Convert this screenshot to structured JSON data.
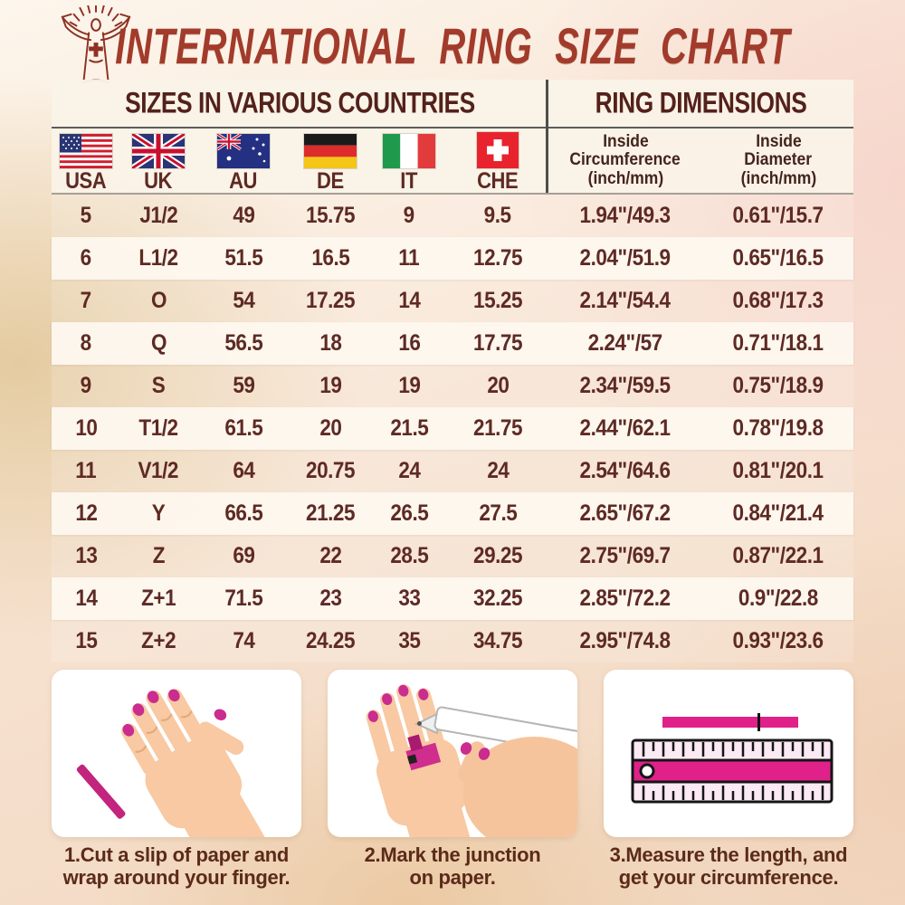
{
  "title": "INTERNATIONAL RING SIZE CHART",
  "table": {
    "section_left": "SIZES IN VARIOUS COUNTRIES",
    "section_right": "RING DIMENSIONS",
    "countries": [
      {
        "code": "USA"
      },
      {
        "code": "UK"
      },
      {
        "code": "AU"
      },
      {
        "code": "DE"
      },
      {
        "code": "IT"
      },
      {
        "code": "CHE"
      }
    ],
    "dim_headers": [
      {
        "line1": "Inside",
        "line2": "Circumference",
        "line3": "(inch/mm)"
      },
      {
        "line1": "Inside",
        "line2": "Diameter",
        "line3": "(inch/mm)"
      }
    ],
    "rows": [
      [
        "5",
        "J1/2",
        "49",
        "15.75",
        "9",
        "9.5",
        "1.94\"/49.3",
        "0.61\"/15.7"
      ],
      [
        "6",
        "L1/2",
        "51.5",
        "16.5",
        "11",
        "12.75",
        "2.04\"/51.9",
        "0.65\"/16.5"
      ],
      [
        "7",
        "O",
        "54",
        "17.25",
        "14",
        "15.25",
        "2.14\"/54.4",
        "0.68\"/17.3"
      ],
      [
        "8",
        "Q",
        "56.5",
        "18",
        "16",
        "17.75",
        "2.24\"/57",
        "0.71\"/18.1"
      ],
      [
        "9",
        "S",
        "59",
        "19",
        "19",
        "20",
        "2.34\"/59.5",
        "0.75\"/18.9"
      ],
      [
        "10",
        "T1/2",
        "61.5",
        "20",
        "21.5",
        "21.75",
        "2.44\"/62.1",
        "0.78\"/19.8"
      ],
      [
        "11",
        "V1/2",
        "64",
        "20.75",
        "24",
        "24",
        "2.54\"/64.6",
        "0.81\"/20.1"
      ],
      [
        "12",
        "Y",
        "66.5",
        "21.25",
        "26.5",
        "27.5",
        "2.65\"/67.2",
        "0.84\"/21.4"
      ],
      [
        "13",
        "Z",
        "69",
        "22",
        "28.5",
        "29.25",
        "2.75\"/69.7",
        "0.87\"/22.1"
      ],
      [
        "14",
        "Z+1",
        "71.5",
        "23",
        "33",
        "32.25",
        "2.85\"/72.2",
        "0.9\"/22.8"
      ],
      [
        "15",
        "Z+2",
        "74",
        "24.25",
        "35",
        "34.75",
        "2.95\"/74.8",
        "0.93\"/23.6"
      ]
    ]
  },
  "steps": [
    {
      "line1": "1.Cut a slip of paper and",
      "line2": "wrap around your finger."
    },
    {
      "line1": "2.Mark the junction",
      "line2": "on paper."
    },
    {
      "line1": "3.Measure the length, and",
      "line2": "get your circumference."
    }
  ],
  "chart_data": {
    "type": "table",
    "title": "INTERNATIONAL RING SIZE CHART",
    "columns": [
      "USA",
      "UK",
      "AU",
      "DE",
      "IT",
      "CHE",
      "Inside Circumference (inch/mm)",
      "Inside Diameter (inch/mm)"
    ],
    "rows": [
      [
        "5",
        "J1/2",
        "49",
        "15.75",
        "9",
        "9.5",
        "1.94\"/49.3",
        "0.61\"/15.7"
      ],
      [
        "6",
        "L1/2",
        "51.5",
        "16.5",
        "11",
        "12.75",
        "2.04\"/51.9",
        "0.65\"/16.5"
      ],
      [
        "7",
        "O",
        "54",
        "17.25",
        "14",
        "15.25",
        "2.14\"/54.4",
        "0.68\"/17.3"
      ],
      [
        "8",
        "Q",
        "56.5",
        "18",
        "16",
        "17.75",
        "2.24\"/57",
        "0.71\"/18.1"
      ],
      [
        "9",
        "S",
        "59",
        "19",
        "19",
        "20",
        "2.34\"/59.5",
        "0.75\"/18.9"
      ],
      [
        "10",
        "T1/2",
        "61.5",
        "20",
        "21.5",
        "21.75",
        "2.44\"/62.1",
        "0.78\"/19.8"
      ],
      [
        "11",
        "V1/2",
        "64",
        "20.75",
        "24",
        "24",
        "2.54\"/64.6",
        "0.81\"/20.1"
      ],
      [
        "12",
        "Y",
        "66.5",
        "21.25",
        "26.5",
        "27.5",
        "2.65\"/67.2",
        "0.84\"/21.4"
      ],
      [
        "13",
        "Z",
        "69",
        "22",
        "28.5",
        "29.25",
        "2.75\"/69.7",
        "0.87\"/22.1"
      ],
      [
        "14",
        "Z+1",
        "71.5",
        "23",
        "33",
        "32.25",
        "2.85\"/72.2",
        "0.9\"/22.8"
      ],
      [
        "15",
        "Z+2",
        "74",
        "24.25",
        "35",
        "34.75",
        "2.95\"/74.8",
        "0.93\"/23.6"
      ]
    ]
  },
  "colors": {
    "title_red": "#a23b2b",
    "table_text": "#5e2a24",
    "magenta_accent": "#cf2e8e",
    "header_panel": "#faf3e7",
    "background_tan": "#e3c99d",
    "background_pink": "#f7d6cc"
  }
}
